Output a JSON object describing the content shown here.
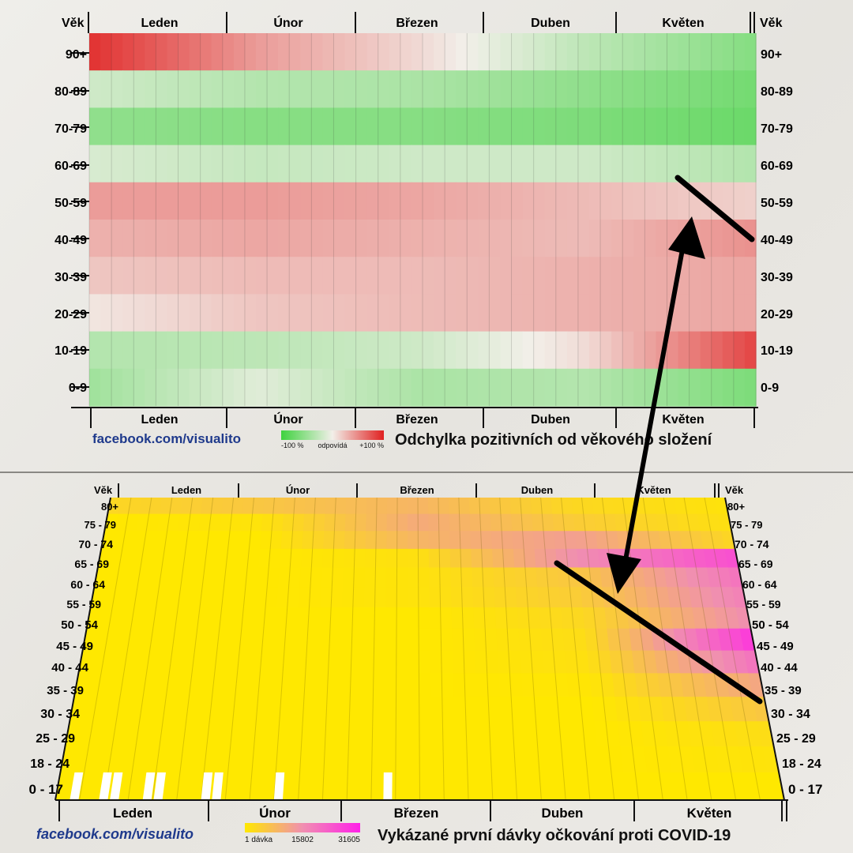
{
  "top_panel": {
    "axis_title_left": "Věk",
    "axis_title_right": "Věk",
    "month_labels_top": [
      "Leden",
      "Únor",
      "Březen",
      "Duben",
      "Květen"
    ],
    "month_labels_bottom": [
      "Leden",
      "Únor",
      "Březen",
      "Duben",
      "Květen"
    ],
    "age_labels": [
      "90+",
      "80-89",
      "70-79",
      "60-69",
      "50-59",
      "40-49",
      "30-39",
      "20-29",
      "10-19",
      "0-9"
    ],
    "brand": "facebook.com/visualito",
    "legend": {
      "min_label": "-100 %",
      "mid_label": "odpovídá",
      "max_label": "+100 %",
      "colors": [
        "#3fd23f",
        "#f2efe9",
        "#e02020"
      ]
    },
    "title": "Odchylka pozitivních od věkového složení"
  },
  "bottom_panel": {
    "axis_title_left": "Věk",
    "axis_title_right": "Věk",
    "month_labels_top": [
      "Leden",
      "Únor",
      "Březen",
      "Duben",
      "Květen"
    ],
    "month_labels_bottom": [
      "Leden",
      "Únor",
      "Březen",
      "Duben",
      "Květen"
    ],
    "age_labels": [
      "80+",
      "75 - 79",
      "70 - 74",
      "65 - 69",
      "60 - 64",
      "55 - 59",
      "50 - 54",
      "45 - 49",
      "40 - 44",
      "35 - 39",
      "30 - 34",
      "25 - 29",
      "18 - 24",
      "0 - 17"
    ],
    "brand": "facebook.com/visualito",
    "legend": {
      "min_label": "1 dávka",
      "mid_label": "15802",
      "max_label": "31605",
      "colors": [
        "#ffe800",
        "#f08fb0",
        "#ff20e8"
      ]
    },
    "title": "Vykázané první dávky očkování proti COVID-19"
  },
  "chart_data": [
    {
      "type": "heatmap",
      "title": "Odchylka pozitivních od věkového složení",
      "x": [
        "Leden",
        "Únor",
        "Březen",
        "Duben",
        "Květen"
      ],
      "y": [
        "90+",
        "80-89",
        "70-79",
        "60-69",
        "50-59",
        "40-49",
        "30-39",
        "20-29",
        "10-19",
        "0-9"
      ],
      "values_percent": [
        [
          90,
          40,
          10,
          -30,
          -60
        ],
        [
          -20,
          -35,
          -40,
          -55,
          -70
        ],
        [
          -55,
          -60,
          -60,
          -65,
          -75
        ],
        [
          -15,
          -25,
          -20,
          -20,
          -35
        ],
        [
          40,
          40,
          35,
          25,
          15
        ],
        [
          30,
          35,
          30,
          25,
          45
        ],
        [
          20,
          25,
          25,
          30,
          35
        ],
        [
          5,
          20,
          25,
          30,
          35
        ],
        [
          -35,
          -30,
          -20,
          10,
          80
        ],
        [
          -45,
          -10,
          -40,
          -35,
          -65
        ]
      ],
      "color_scale": {
        "min": -100,
        "max": 100,
        "labels": [
          "-100 %",
          "odpovídá",
          "+100 %"
        ]
      },
      "annotation": "black arrow linking 40-49 in Květen to the 65-69 vaccination wave"
    },
    {
      "type": "heatmap",
      "title": "Vykázané první dávky očkování proti COVID-19",
      "x": [
        "Leden",
        "Únor",
        "Březen",
        "Duben",
        "Květen"
      ],
      "y": [
        "80+",
        "75 - 79",
        "70 - 74",
        "65 - 69",
        "60 - 64",
        "55 - 59",
        "50 - 54",
        "45 - 49",
        "40 - 44",
        "35 - 39",
        "30 - 34",
        "25 - 29",
        "18 - 24",
        "0 - 17"
      ],
      "values_doses": [
        [
          3000,
          6000,
          9000,
          3000,
          1000
        ],
        [
          0,
          1000,
          11000,
          5000,
          1500
        ],
        [
          0,
          0,
          9000,
          13000,
          3000
        ],
        [
          0,
          0,
          1500,
          16000,
          25000
        ],
        [
          0,
          0,
          1000,
          6000,
          20000
        ],
        [
          0,
          0,
          1000,
          5000,
          18000
        ],
        [
          0,
          0,
          0,
          3000,
          16000
        ],
        [
          0,
          0,
          0,
          2000,
          28000
        ],
        [
          0,
          0,
          0,
          1500,
          20000
        ],
        [
          0,
          0,
          0,
          500,
          12000
        ],
        [
          0,
          0,
          0,
          0,
          6000
        ],
        [
          0,
          0,
          0,
          0,
          2000
        ],
        [
          0,
          0,
          0,
          0,
          1000
        ],
        [
          0,
          0,
          0,
          0,
          0
        ]
      ],
      "color_scale": {
        "min": 1,
        "max": 31605,
        "labels": [
          "1 dávka",
          "15802",
          "31605"
        ]
      }
    }
  ]
}
